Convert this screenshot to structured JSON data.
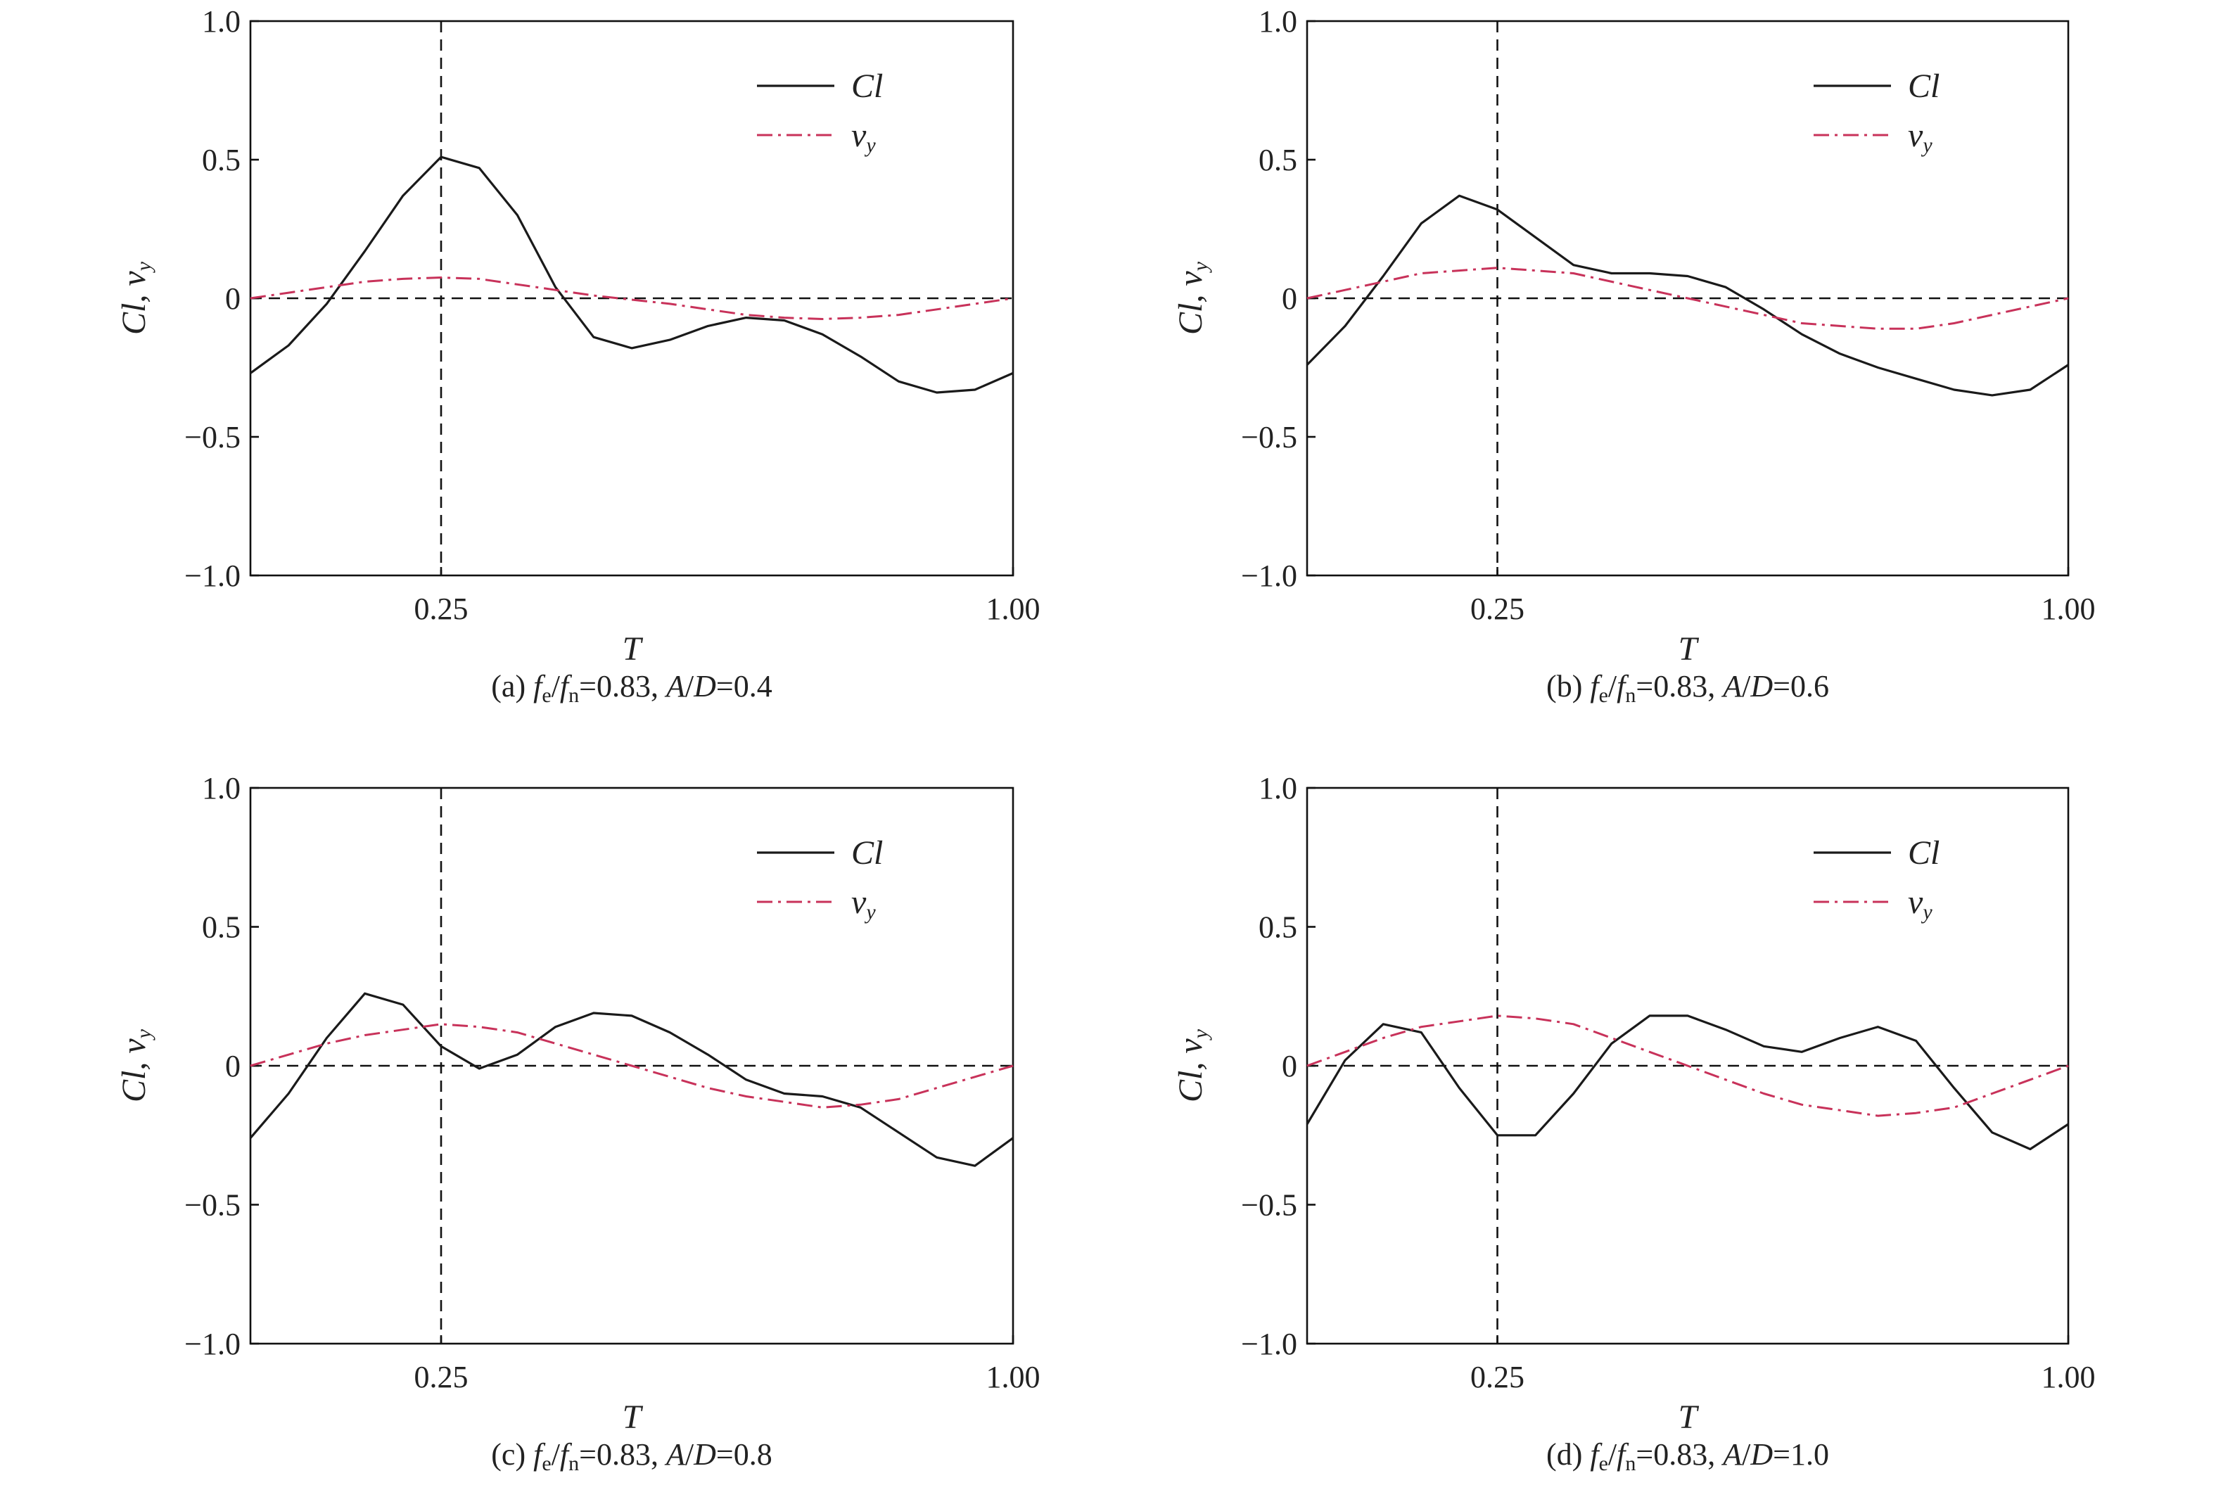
{
  "chart_data": [
    {
      "type": "line",
      "caption_parts": [
        {
          "text": "(a) ",
          "italic": false
        },
        {
          "text": "f",
          "italic": true
        },
        {
          "text": "e",
          "italic": false,
          "sub": true
        },
        {
          "text": "/",
          "italic": false
        },
        {
          "text": "f",
          "italic": true
        },
        {
          "text": "n",
          "italic": false,
          "sub": true
        },
        {
          "text": "=0.83, ",
          "italic": false
        },
        {
          "text": "A",
          "italic": true
        },
        {
          "text": "/",
          "italic": false
        },
        {
          "text": "D",
          "italic": true
        },
        {
          "text": "=0.4",
          "italic": false
        }
      ],
      "xlabel": "T",
      "ylabel": "Cl, vy",
      "xlim": [
        0,
        1
      ],
      "ylim": [
        -1,
        1
      ],
      "xticks": [
        0.25,
        1.0
      ],
      "xtick_labels": [
        "0.25",
        "1.00"
      ],
      "yticks": [
        1.0,
        0.5,
        0,
        -0.5,
        -1.0
      ],
      "ytick_labels": [
        "1.0",
        "0.5",
        "0",
        "−0.5",
        "−1.0"
      ],
      "legend_position": "top-right",
      "vy_color": "#c8325a",
      "series": [
        {
          "name": "Cl",
          "style": "solid",
          "x": [
            0,
            0.05,
            0.1,
            0.15,
            0.2,
            0.25,
            0.3,
            0.35,
            0.4,
            0.45,
            0.5,
            0.55,
            0.6,
            0.65,
            0.7,
            0.75,
            0.8,
            0.85,
            0.9,
            0.95,
            1.0
          ],
          "y": [
            -0.27,
            -0.17,
            -0.02,
            0.17,
            0.37,
            0.51,
            0.47,
            0.3,
            0.04,
            -0.14,
            -0.18,
            -0.15,
            -0.1,
            -0.07,
            -0.08,
            -0.13,
            -0.21,
            -0.3,
            -0.34,
            -0.33,
            -0.27
          ]
        },
        {
          "name": "v",
          "sub": "y",
          "style": "dashdot",
          "x": [
            0,
            0.05,
            0.1,
            0.15,
            0.2,
            0.25,
            0.3,
            0.35,
            0.4,
            0.45,
            0.5,
            0.55,
            0.6,
            0.65,
            0.7,
            0.75,
            0.8,
            0.85,
            0.9,
            0.95,
            1.0
          ],
          "y": [
            0,
            0.02,
            0.04,
            0.06,
            0.07,
            0.075,
            0.07,
            0.05,
            0.03,
            0.01,
            -0.005,
            -0.02,
            -0.04,
            -0.06,
            -0.07,
            -0.075,
            -0.07,
            -0.06,
            -0.04,
            -0.02,
            0
          ]
        }
      ]
    },
    {
      "type": "line",
      "caption_parts": [
        {
          "text": "(b) ",
          "italic": false
        },
        {
          "text": "f",
          "italic": true
        },
        {
          "text": "e",
          "italic": false,
          "sub": true
        },
        {
          "text": "/",
          "italic": false
        },
        {
          "text": "f",
          "italic": true
        },
        {
          "text": "n",
          "italic": false,
          "sub": true
        },
        {
          "text": "=0.83, ",
          "italic": false
        },
        {
          "text": "A",
          "italic": true
        },
        {
          "text": "/",
          "italic": false
        },
        {
          "text": "D",
          "italic": true
        },
        {
          "text": "=0.6",
          "italic": false
        }
      ],
      "xlabel": "T",
      "ylabel": "Cl, vy",
      "xlim": [
        0,
        1
      ],
      "ylim": [
        -1,
        1
      ],
      "xticks": [
        0.25,
        1.0
      ],
      "xtick_labels": [
        "0.25",
        "1.00"
      ],
      "yticks": [
        1.0,
        0.5,
        0,
        -0.5,
        -1.0
      ],
      "ytick_labels": [
        "1.0",
        "0.5",
        "0",
        "−0.5",
        "−1.0"
      ],
      "legend_position": "top-right",
      "vy_color": "#c8325a",
      "series": [
        {
          "name": "Cl",
          "style": "solid",
          "x": [
            0,
            0.05,
            0.1,
            0.15,
            0.2,
            0.25,
            0.3,
            0.35,
            0.4,
            0.45,
            0.5,
            0.55,
            0.6,
            0.65,
            0.7,
            0.75,
            0.8,
            0.85,
            0.9,
            0.95,
            1.0
          ],
          "y": [
            -0.24,
            -0.1,
            0.08,
            0.27,
            0.37,
            0.32,
            0.22,
            0.12,
            0.09,
            0.09,
            0.08,
            0.04,
            -0.04,
            -0.13,
            -0.2,
            -0.25,
            -0.29,
            -0.33,
            -0.35,
            -0.33,
            -0.24
          ]
        },
        {
          "name": "v",
          "sub": "y",
          "style": "dashdot",
          "x": [
            0,
            0.05,
            0.1,
            0.15,
            0.2,
            0.25,
            0.3,
            0.35,
            0.4,
            0.45,
            0.5,
            0.55,
            0.6,
            0.65,
            0.7,
            0.75,
            0.8,
            0.85,
            0.9,
            0.95,
            1.0
          ],
          "y": [
            0,
            0.03,
            0.06,
            0.09,
            0.1,
            0.11,
            0.1,
            0.09,
            0.06,
            0.03,
            0,
            -0.03,
            -0.06,
            -0.09,
            -0.1,
            -0.11,
            -0.11,
            -0.09,
            -0.06,
            -0.03,
            0
          ]
        }
      ]
    },
    {
      "type": "line",
      "caption_parts": [
        {
          "text": "(c) ",
          "italic": false
        },
        {
          "text": "f",
          "italic": true
        },
        {
          "text": "e",
          "italic": false,
          "sub": true
        },
        {
          "text": "/",
          "italic": false
        },
        {
          "text": "f",
          "italic": true
        },
        {
          "text": "n",
          "italic": false,
          "sub": true
        },
        {
          "text": "=0.83, ",
          "italic": false
        },
        {
          "text": "A",
          "italic": true
        },
        {
          "text": "/",
          "italic": false
        },
        {
          "text": "D",
          "italic": true
        },
        {
          "text": "=0.8",
          "italic": false
        }
      ],
      "xlabel": "T",
      "ylabel": "Cl, vy",
      "xlim": [
        0,
        1
      ],
      "ylim": [
        -1,
        1
      ],
      "xticks": [
        0.25,
        1.0
      ],
      "xtick_labels": [
        "0.25",
        "1.00"
      ],
      "yticks": [
        1.0,
        0.5,
        0,
        -0.5,
        -1.0
      ],
      "ytick_labels": [
        "1.0",
        "0.5",
        "0",
        "−0.5",
        "−1.0"
      ],
      "legend_position": "top-right",
      "vy_color": "#c8325a",
      "series": [
        {
          "name": "Cl",
          "style": "solid",
          "x": [
            0,
            0.05,
            0.1,
            0.15,
            0.2,
            0.25,
            0.3,
            0.35,
            0.4,
            0.45,
            0.5,
            0.55,
            0.6,
            0.65,
            0.7,
            0.75,
            0.8,
            0.85,
            0.9,
            0.95,
            1.0
          ],
          "y": [
            -0.26,
            -0.1,
            0.1,
            0.26,
            0.22,
            0.07,
            -0.01,
            0.04,
            0.14,
            0.19,
            0.18,
            0.12,
            0.04,
            -0.05,
            -0.1,
            -0.11,
            -0.15,
            -0.24,
            -0.33,
            -0.36,
            -0.26
          ]
        },
        {
          "name": "v",
          "sub": "y",
          "style": "dashdot",
          "x": [
            0,
            0.05,
            0.1,
            0.15,
            0.2,
            0.25,
            0.3,
            0.35,
            0.4,
            0.45,
            0.5,
            0.55,
            0.6,
            0.65,
            0.7,
            0.75,
            0.8,
            0.85,
            0.9,
            0.95,
            1.0
          ],
          "y": [
            0,
            0.04,
            0.08,
            0.11,
            0.13,
            0.15,
            0.14,
            0.12,
            0.08,
            0.04,
            0,
            -0.04,
            -0.08,
            -0.11,
            -0.13,
            -0.15,
            -0.14,
            -0.12,
            -0.08,
            -0.04,
            0
          ]
        }
      ]
    },
    {
      "type": "line",
      "caption_parts": [
        {
          "text": "(d) ",
          "italic": false
        },
        {
          "text": "f",
          "italic": true
        },
        {
          "text": "e",
          "italic": false,
          "sub": true
        },
        {
          "text": "/",
          "italic": false
        },
        {
          "text": "f",
          "italic": true
        },
        {
          "text": "n",
          "italic": false,
          "sub": true
        },
        {
          "text": "=0.83, ",
          "italic": false
        },
        {
          "text": "A",
          "italic": true
        },
        {
          "text": "/",
          "italic": false
        },
        {
          "text": "D",
          "italic": true
        },
        {
          "text": "=1.0",
          "italic": false
        }
      ],
      "xlabel": "T",
      "ylabel": "Cl, vy",
      "xlim": [
        0,
        1
      ],
      "ylim": [
        -1,
        1
      ],
      "xticks": [
        0.25,
        1.0
      ],
      "xtick_labels": [
        "0.25",
        "1.00"
      ],
      "yticks": [
        1.0,
        0.5,
        0,
        -0.5,
        -1.0
      ],
      "ytick_labels": [
        "1.0",
        "0.5",
        "0",
        "−0.5",
        "−1.0"
      ],
      "legend_position": "top-right",
      "vy_color": "#c8325a",
      "series": [
        {
          "name": "Cl",
          "style": "solid",
          "x": [
            0,
            0.05,
            0.1,
            0.15,
            0.2,
            0.25,
            0.3,
            0.35,
            0.4,
            0.45,
            0.5,
            0.55,
            0.6,
            0.65,
            0.7,
            0.75,
            0.8,
            0.85,
            0.9,
            0.95,
            1.0
          ],
          "y": [
            -0.21,
            0.02,
            0.15,
            0.12,
            -0.08,
            -0.25,
            -0.25,
            -0.1,
            0.08,
            0.18,
            0.18,
            0.13,
            0.07,
            0.05,
            0.1,
            0.14,
            0.09,
            -0.08,
            -0.24,
            -0.3,
            -0.21
          ]
        },
        {
          "name": "v",
          "sub": "y",
          "style": "dashdot",
          "x": [
            0,
            0.05,
            0.1,
            0.15,
            0.2,
            0.25,
            0.3,
            0.35,
            0.4,
            0.45,
            0.5,
            0.55,
            0.6,
            0.65,
            0.7,
            0.75,
            0.8,
            0.85,
            0.9,
            0.95,
            1.0
          ],
          "y": [
            0,
            0.05,
            0.1,
            0.14,
            0.16,
            0.18,
            0.17,
            0.15,
            0.1,
            0.05,
            0,
            -0.05,
            -0.1,
            -0.14,
            -0.16,
            -0.18,
            -0.17,
            -0.15,
            -0.1,
            -0.05,
            0
          ]
        }
      ]
    }
  ]
}
